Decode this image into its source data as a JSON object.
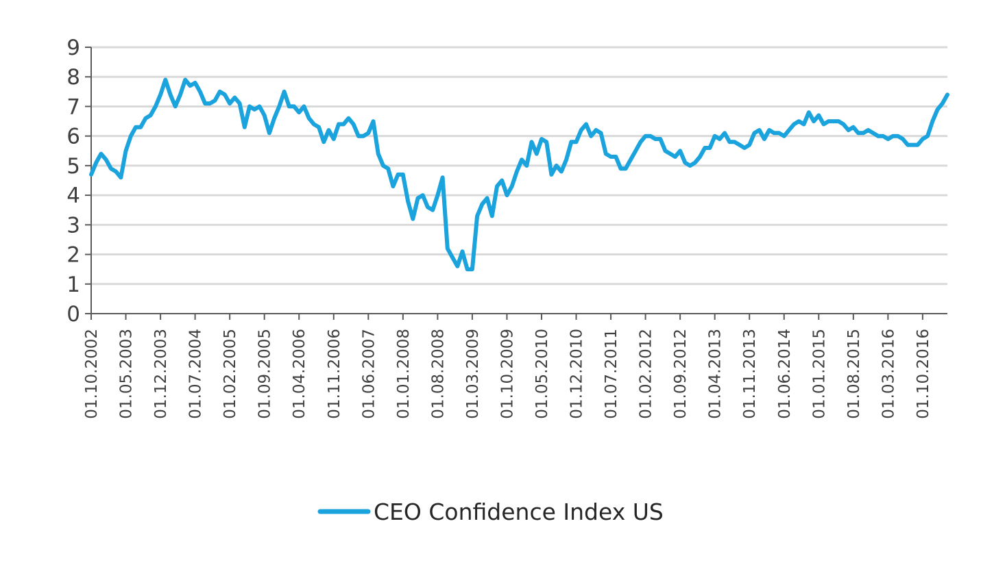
{
  "chart_data": {
    "type": "line",
    "title": "",
    "xlabel": "",
    "ylabel": "",
    "ylim": [
      0,
      9
    ],
    "yticks": [
      0,
      1,
      2,
      3,
      4,
      5,
      6,
      7,
      8,
      9
    ],
    "grid": true,
    "legend_position": "bottom",
    "x_start": "2002-10",
    "x_end": "2017-03",
    "x_tick_labels": [
      "01.10.2002",
      "01.05.2003",
      "01.12.2003",
      "01.07.2004",
      "01.02.2005",
      "01.09.2005",
      "01.04.2006",
      "01.11.2006",
      "01.06.2007",
      "01.01.2008",
      "01.08.2008",
      "01.03.2009",
      "01.10.2009",
      "01.05.2010",
      "01.12.2010",
      "01.07.2011",
      "01.02.2012",
      "01.09.2012",
      "01.04.2013",
      "01.11.2013",
      "01.06.2014",
      "01.01.2015",
      "01.08.2015",
      "01.03.2016",
      "01.10.2016"
    ],
    "series": [
      {
        "name": "CEO Confidence Index US",
        "color": "#1aa3dc",
        "points": [
          [
            "2002-10",
            4.7
          ],
          [
            "2002-11",
            5.1
          ],
          [
            "2002-12",
            5.4
          ],
          [
            "2003-01",
            5.2
          ],
          [
            "2003-02",
            4.9
          ],
          [
            "2003-03",
            4.8
          ],
          [
            "2003-04",
            4.6
          ],
          [
            "2003-05",
            5.5
          ],
          [
            "2003-06",
            6.0
          ],
          [
            "2003-07",
            6.3
          ],
          [
            "2003-08",
            6.3
          ],
          [
            "2003-09",
            6.6
          ],
          [
            "2003-10",
            6.7
          ],
          [
            "2003-11",
            7.0
          ],
          [
            "2003-12",
            7.4
          ],
          [
            "2004-01",
            7.9
          ],
          [
            "2004-02",
            7.4
          ],
          [
            "2004-03",
            7.0
          ],
          [
            "2004-04",
            7.4
          ],
          [
            "2004-05",
            7.9
          ],
          [
            "2004-06",
            7.7
          ],
          [
            "2004-07",
            7.8
          ],
          [
            "2004-08",
            7.5
          ],
          [
            "2004-09",
            7.1
          ],
          [
            "2004-10",
            7.1
          ],
          [
            "2004-11",
            7.2
          ],
          [
            "2004-12",
            7.5
          ],
          [
            "2005-01",
            7.4
          ],
          [
            "2005-02",
            7.1
          ],
          [
            "2005-03",
            7.3
          ],
          [
            "2005-04",
            7.1
          ],
          [
            "2005-05",
            6.3
          ],
          [
            "2005-06",
            7.0
          ],
          [
            "2005-07",
            6.9
          ],
          [
            "2005-08",
            7.0
          ],
          [
            "2005-09",
            6.7
          ],
          [
            "2005-10",
            6.1
          ],
          [
            "2005-11",
            6.6
          ],
          [
            "2005-12",
            7.0
          ],
          [
            "2006-01",
            7.5
          ],
          [
            "2006-02",
            7.0
          ],
          [
            "2006-03",
            7.0
          ],
          [
            "2006-04",
            6.8
          ],
          [
            "2006-05",
            7.0
          ],
          [
            "2006-06",
            6.6
          ],
          [
            "2006-07",
            6.4
          ],
          [
            "2006-08",
            6.3
          ],
          [
            "2006-09",
            5.8
          ],
          [
            "2006-10",
            6.2
          ],
          [
            "2006-11",
            5.9
          ],
          [
            "2006-12",
            6.4
          ],
          [
            "2007-01",
            6.4
          ],
          [
            "2007-02",
            6.6
          ],
          [
            "2007-03",
            6.4
          ],
          [
            "2007-04",
            6.0
          ],
          [
            "2007-05",
            6.0
          ],
          [
            "2007-06",
            6.1
          ],
          [
            "2007-07",
            6.5
          ],
          [
            "2007-08",
            5.4
          ],
          [
            "2007-09",
            5.0
          ],
          [
            "2007-10",
            4.9
          ],
          [
            "2007-11",
            4.3
          ],
          [
            "2007-12",
            4.7
          ],
          [
            "2008-01",
            4.7
          ],
          [
            "2008-02",
            3.8
          ],
          [
            "2008-03",
            3.2
          ],
          [
            "2008-04",
            3.9
          ],
          [
            "2008-05",
            4.0
          ],
          [
            "2008-06",
            3.6
          ],
          [
            "2008-07",
            3.5
          ],
          [
            "2008-08",
            4.0
          ],
          [
            "2008-09",
            4.6
          ],
          [
            "2008-10",
            2.2
          ],
          [
            "2008-11",
            1.9
          ],
          [
            "2008-12",
            1.6
          ],
          [
            "2009-01",
            2.1
          ],
          [
            "2009-02",
            1.5
          ],
          [
            "2009-03",
            1.5
          ],
          [
            "2009-04",
            3.3
          ],
          [
            "2009-05",
            3.7
          ],
          [
            "2009-06",
            3.9
          ],
          [
            "2009-07",
            3.3
          ],
          [
            "2009-08",
            4.3
          ],
          [
            "2009-09",
            4.5
          ],
          [
            "2009-10",
            4.0
          ],
          [
            "2009-11",
            4.3
          ],
          [
            "2009-12",
            4.8
          ],
          [
            "2010-01",
            5.2
          ],
          [
            "2010-02",
            5.0
          ],
          [
            "2010-03",
            5.8
          ],
          [
            "2010-04",
            5.4
          ],
          [
            "2010-05",
            5.9
          ],
          [
            "2010-06",
            5.8
          ],
          [
            "2010-07",
            4.7
          ],
          [
            "2010-08",
            5.0
          ],
          [
            "2010-09",
            4.8
          ],
          [
            "2010-10",
            5.2
          ],
          [
            "2010-11",
            5.8
          ],
          [
            "2010-12",
            5.8
          ],
          [
            "2011-01",
            6.2
          ],
          [
            "2011-02",
            6.4
          ],
          [
            "2011-03",
            6.0
          ],
          [
            "2011-04",
            6.2
          ],
          [
            "2011-05",
            6.1
          ],
          [
            "2011-06",
            5.4
          ],
          [
            "2011-07",
            5.3
          ],
          [
            "2011-08",
            5.3
          ],
          [
            "2011-09",
            4.9
          ],
          [
            "2011-10",
            4.9
          ],
          [
            "2011-11",
            5.2
          ],
          [
            "2011-12",
            5.5
          ],
          [
            "2012-01",
            5.8
          ],
          [
            "2012-02",
            6.0
          ],
          [
            "2012-03",
            6.0
          ],
          [
            "2012-04",
            5.9
          ],
          [
            "2012-05",
            5.9
          ],
          [
            "2012-06",
            5.5
          ],
          [
            "2012-07",
            5.4
          ],
          [
            "2012-08",
            5.3
          ],
          [
            "2012-09",
            5.5
          ],
          [
            "2012-10",
            5.1
          ],
          [
            "2012-11",
            5.0
          ],
          [
            "2012-12",
            5.1
          ],
          [
            "2013-01",
            5.3
          ],
          [
            "2013-02",
            5.6
          ],
          [
            "2013-03",
            5.6
          ],
          [
            "2013-04",
            6.0
          ],
          [
            "2013-05",
            5.9
          ],
          [
            "2013-06",
            6.1
          ],
          [
            "2013-07",
            5.8
          ],
          [
            "2013-08",
            5.8
          ],
          [
            "2013-09",
            5.7
          ],
          [
            "2013-10",
            5.6
          ],
          [
            "2013-11",
            5.7
          ],
          [
            "2013-12",
            6.1
          ],
          [
            "2014-01",
            6.2
          ],
          [
            "2014-02",
            5.9
          ],
          [
            "2014-03",
            6.2
          ],
          [
            "2014-04",
            6.1
          ],
          [
            "2014-05",
            6.1
          ],
          [
            "2014-06",
            6.0
          ],
          [
            "2014-07",
            6.2
          ],
          [
            "2014-08",
            6.4
          ],
          [
            "2014-09",
            6.5
          ],
          [
            "2014-10",
            6.4
          ],
          [
            "2014-11",
            6.8
          ],
          [
            "2014-12",
            6.5
          ],
          [
            "2015-01",
            6.7
          ],
          [
            "2015-02",
            6.4
          ],
          [
            "2015-03",
            6.5
          ],
          [
            "2015-04",
            6.5
          ],
          [
            "2015-05",
            6.5
          ],
          [
            "2015-06",
            6.4
          ],
          [
            "2015-07",
            6.2
          ],
          [
            "2015-08",
            6.3
          ],
          [
            "2015-09",
            6.1
          ],
          [
            "2015-10",
            6.1
          ],
          [
            "2015-11",
            6.2
          ],
          [
            "2015-12",
            6.1
          ],
          [
            "2016-01",
            6.0
          ],
          [
            "2016-02",
            6.0
          ],
          [
            "2016-03",
            5.9
          ],
          [
            "2016-04",
            6.0
          ],
          [
            "2016-05",
            6.0
          ],
          [
            "2016-06",
            5.9
          ],
          [
            "2016-07",
            5.7
          ],
          [
            "2016-08",
            5.7
          ],
          [
            "2016-09",
            5.7
          ],
          [
            "2016-10",
            5.9
          ],
          [
            "2016-11",
            6.0
          ],
          [
            "2016-12",
            6.5
          ],
          [
            "2017-01",
            6.9
          ],
          [
            "2017-02",
            7.1
          ],
          [
            "2017-03",
            7.4
          ]
        ]
      }
    ]
  }
}
